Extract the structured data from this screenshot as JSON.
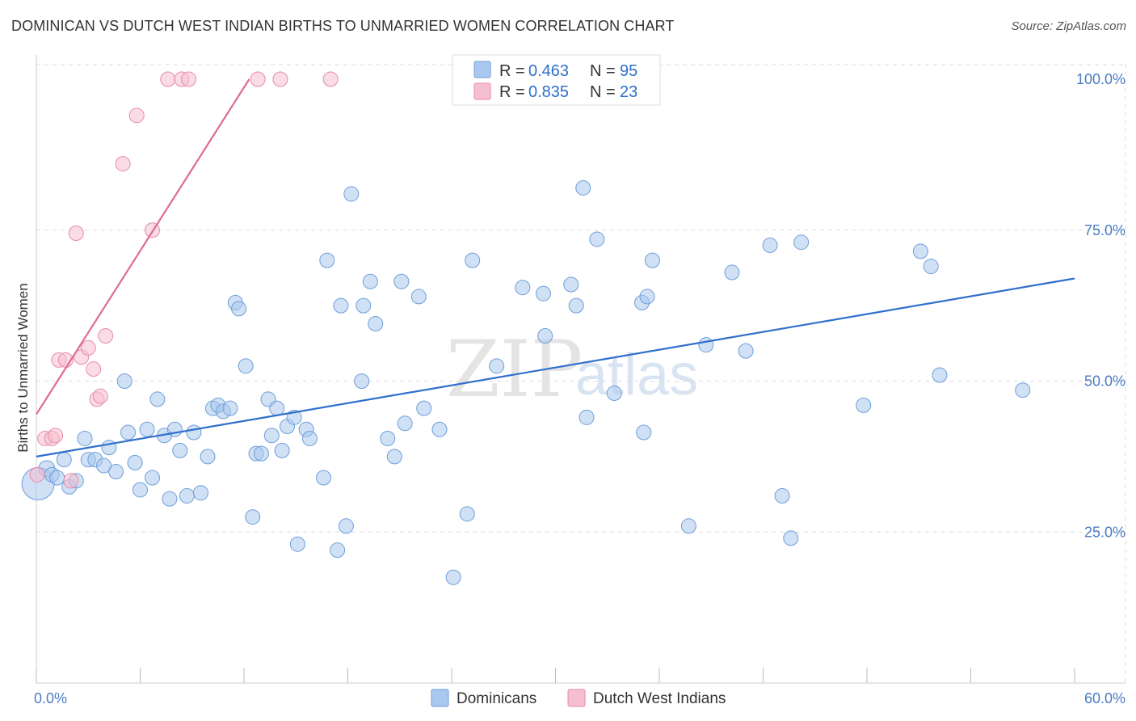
{
  "title": "DOMINICAN VS DUTCH WEST INDIAN BIRTHS TO UNMARRIED WOMEN CORRELATION CHART",
  "source": "Source: ZipAtlas.com",
  "watermark": {
    "zip": "ZIP",
    "atlas": "atlas"
  },
  "chart_data": {
    "type": "scatter",
    "title": "DOMINICAN VS DUTCH WEST INDIAN BIRTHS TO UNMARRIED WOMEN CORRELATION CHART",
    "xlabel": "",
    "ylabel": "Births to Unmarried Women",
    "xlim": [
      0,
      60
    ],
    "ylim": [
      0,
      102
    ],
    "x_tick_labels": [
      {
        "value": 0,
        "label": "0.0%"
      },
      {
        "value": 60,
        "label": "60.0%"
      }
    ],
    "y_tick_labels": [
      {
        "value": 25,
        "label": "25.0%"
      },
      {
        "value": 50,
        "label": "50.0%"
      },
      {
        "value": 75,
        "label": "75.0%"
      },
      {
        "value": 100,
        "label": "100.0%"
      }
    ],
    "grid": true,
    "legend": [
      {
        "series": "Dominicans",
        "r_label": "R =",
        "r_value": "0.463",
        "n_label": "N =",
        "n_value": "95"
      },
      {
        "series": "Dutch West Indians",
        "r_label": "R =",
        "r_value": "0.835",
        "n_label": "N =",
        "n_value": "23"
      }
    ],
    "series": [
      {
        "name": "Dominicans",
        "color": "#a9c8ef",
        "stroke": "#6f9ed8",
        "trend": {
          "x": [
            0,
            60
          ],
          "y": [
            37.5,
            67.0
          ],
          "color": "#2f6fcc"
        },
        "points": [
          [
            0.1,
            33.0,
            20
          ],
          [
            0.6,
            35.5,
            10
          ],
          [
            0.9,
            34.5,
            9
          ],
          [
            1.2,
            34.0,
            9
          ],
          [
            1.6,
            37.0,
            9
          ],
          [
            1.9,
            32.5,
            9
          ],
          [
            2.3,
            33.5,
            9
          ],
          [
            2.8,
            40.5,
            9
          ],
          [
            3.0,
            37.0,
            9
          ],
          [
            3.4,
            37.0,
            9
          ],
          [
            3.9,
            36.0,
            9
          ],
          [
            4.2,
            39.0,
            9
          ],
          [
            4.6,
            35.0,
            9
          ],
          [
            5.1,
            50.0,
            9
          ],
          [
            5.3,
            41.5,
            9
          ],
          [
            5.7,
            36.5,
            9
          ],
          [
            6.0,
            32.0,
            9
          ],
          [
            6.4,
            42.0,
            9
          ],
          [
            6.7,
            34.0,
            9
          ],
          [
            7.0,
            47.0,
            9
          ],
          [
            7.4,
            41.0,
            9
          ],
          [
            7.7,
            30.5,
            9
          ],
          [
            8.0,
            42.0,
            9
          ],
          [
            8.3,
            38.5,
            9
          ],
          [
            8.7,
            31.0,
            9
          ],
          [
            9.1,
            41.5,
            9
          ],
          [
            9.5,
            31.5,
            9
          ],
          [
            9.9,
            37.5,
            9
          ],
          [
            10.2,
            45.5,
            9
          ],
          [
            10.5,
            46.0,
            9
          ],
          [
            10.8,
            45.0,
            9
          ],
          [
            11.2,
            45.5,
            9
          ],
          [
            11.5,
            63.0,
            9
          ],
          [
            11.7,
            62.0,
            9
          ],
          [
            12.1,
            52.5,
            9
          ],
          [
            12.5,
            27.5,
            9
          ],
          [
            12.7,
            38.0,
            9
          ],
          [
            13.0,
            38.0,
            9
          ],
          [
            13.4,
            47.0,
            9
          ],
          [
            13.6,
            41.0,
            9
          ],
          [
            13.9,
            45.5,
            9
          ],
          [
            14.2,
            38.5,
            9
          ],
          [
            14.5,
            42.5,
            9
          ],
          [
            14.9,
            44.0,
            9
          ],
          [
            15.1,
            23.0,
            9
          ],
          [
            15.6,
            42.0,
            9
          ],
          [
            15.8,
            40.5,
            9
          ],
          [
            16.6,
            34.0,
            9
          ],
          [
            16.8,
            70.0,
            9
          ],
          [
            17.4,
            22.0,
            9
          ],
          [
            17.6,
            62.5,
            9
          ],
          [
            17.9,
            26.0,
            9
          ],
          [
            18.2,
            81.0,
            9
          ],
          [
            18.8,
            50.0,
            9
          ],
          [
            18.9,
            62.5,
            9
          ],
          [
            19.3,
            66.5,
            9
          ],
          [
            19.6,
            59.5,
            9
          ],
          [
            20.3,
            40.5,
            9
          ],
          [
            20.7,
            37.5,
            9
          ],
          [
            21.1,
            66.5,
            9
          ],
          [
            21.3,
            43.0,
            9
          ],
          [
            22.1,
            64.0,
            9
          ],
          [
            22.4,
            45.5,
            9
          ],
          [
            23.3,
            42.0,
            9
          ],
          [
            24.1,
            17.5,
            9
          ],
          [
            24.9,
            28.0,
            9
          ],
          [
            25.2,
            70.0,
            9
          ],
          [
            26.6,
            52.5,
            9
          ],
          [
            28.1,
            65.5,
            9
          ],
          [
            29.3,
            64.5,
            9
          ],
          [
            29.4,
            57.5,
            9
          ],
          [
            30.9,
            66.0,
            9
          ],
          [
            31.2,
            62.5,
            9
          ],
          [
            31.6,
            82.0,
            9
          ],
          [
            31.8,
            44.0,
            9
          ],
          [
            32.4,
            73.5,
            9
          ],
          [
            33.4,
            48.0,
            9
          ],
          [
            35.0,
            63.0,
            9
          ],
          [
            35.1,
            41.5,
            9
          ],
          [
            35.3,
            64.0,
            9
          ],
          [
            35.6,
            70.0,
            9
          ],
          [
            37.7,
            26.0,
            9
          ],
          [
            38.7,
            56.0,
            9
          ],
          [
            40.2,
            68.0,
            9
          ],
          [
            41.0,
            55.0,
            9
          ],
          [
            42.4,
            72.5,
            9
          ],
          [
            43.1,
            31.0,
            9
          ],
          [
            43.6,
            24.0,
            9
          ],
          [
            44.2,
            73.0,
            9
          ],
          [
            47.8,
            46.0,
            9
          ],
          [
            51.1,
            71.5,
            9
          ],
          [
            51.7,
            69.0,
            9
          ],
          [
            52.2,
            51.0,
            9
          ],
          [
            57.0,
            48.5,
            9
          ]
        ]
      },
      {
        "name": "Dutch West Indians",
        "color": "#f6bfd0",
        "stroke": "#e88aa8",
        "trend": {
          "x": [
            0,
            12.3
          ],
          "y": [
            44.5,
            100
          ],
          "color": "#e06a92"
        },
        "points": [
          [
            0.05,
            34.5,
            9
          ],
          [
            0.5,
            40.5,
            9
          ],
          [
            0.9,
            40.5,
            9
          ],
          [
            1.1,
            41.0,
            9
          ],
          [
            1.3,
            53.5,
            9
          ],
          [
            1.7,
            53.5,
            9
          ],
          [
            2.0,
            33.5,
            9
          ],
          [
            2.3,
            74.5,
            9
          ],
          [
            2.6,
            54.0,
            9
          ],
          [
            3.0,
            55.5,
            9
          ],
          [
            3.3,
            52.0,
            9
          ],
          [
            3.5,
            47.0,
            9
          ],
          [
            3.7,
            47.5,
            9
          ],
          [
            4.0,
            57.5,
            9
          ],
          [
            5.0,
            86.0,
            9
          ],
          [
            5.8,
            94.0,
            9
          ],
          [
            6.7,
            75.0,
            9
          ],
          [
            7.6,
            100.0,
            9
          ],
          [
            8.4,
            100.0,
            9
          ],
          [
            8.8,
            100.0,
            9
          ],
          [
            12.8,
            100.0,
            9
          ],
          [
            14.1,
            100.0,
            9
          ],
          [
            17.0,
            100.0,
            9
          ]
        ]
      }
    ]
  }
}
